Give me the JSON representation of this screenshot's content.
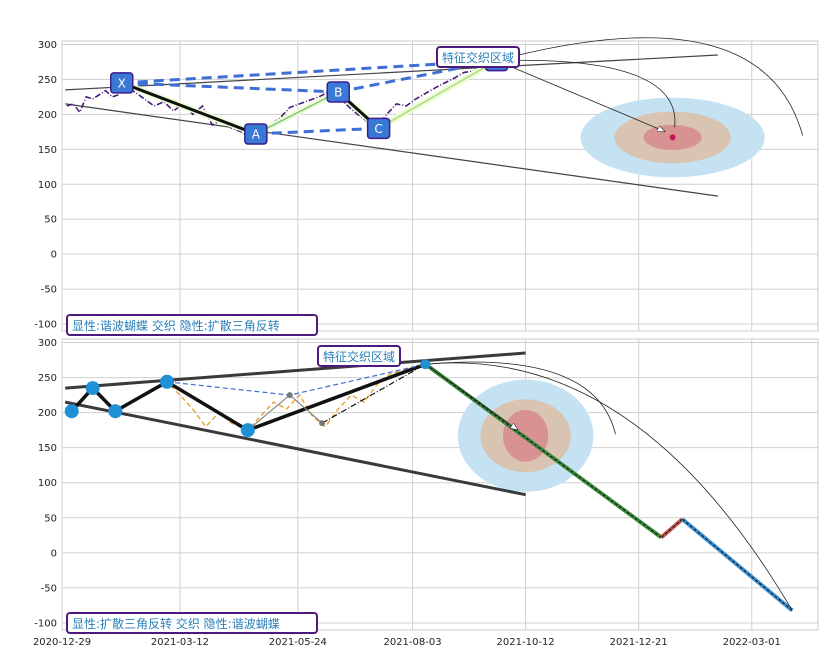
{
  "chart_data": [
    {
      "type": "line",
      "title": "",
      "xlabel": "",
      "ylabel": "",
      "ylim": [
        -110,
        305
      ],
      "xlim": [
        "2020-12-29",
        "2022-04-11"
      ],
      "grid": true,
      "y_ticks": [
        300,
        250,
        200,
        150,
        100,
        50,
        0,
        -50,
        -100
      ],
      "annotation_zone": "特征交织区域",
      "annotation_bottom": "显性:谐波蝴蝶 交织 隐性:扩散三角反转",
      "pattern_points": [
        {
          "label": "X",
          "date": "2021-02-04",
          "value": 245
        },
        {
          "label": "A",
          "date": "2021-04-28",
          "value": 172
        },
        {
          "label": "B",
          "date": "2021-06-18",
          "value": 232
        },
        {
          "label": "C",
          "date": "2021-07-13",
          "value": 180
        },
        {
          "label": "D",
          "date": "2021-09-24",
          "value": 277
        }
      ],
      "price_series": [
        [
          "2021-01-01",
          212
        ],
        [
          "2021-01-05",
          215
        ],
        [
          "2021-01-09",
          203
        ],
        [
          "2021-01-13",
          225
        ],
        [
          "2021-01-17",
          222
        ],
        [
          "2021-01-21",
          228
        ],
        [
          "2021-01-25",
          234
        ],
        [
          "2021-01-29",
          225
        ],
        [
          "2021-02-02",
          228
        ],
        [
          "2021-02-06",
          240
        ],
        [
          "2021-02-12",
          232
        ],
        [
          "2021-02-18",
          222
        ],
        [
          "2021-02-24",
          212
        ],
        [
          "2021-03-02",
          218
        ],
        [
          "2021-03-08",
          205
        ],
        [
          "2021-03-14",
          215
        ],
        [
          "2021-03-20",
          200
        ],
        [
          "2021-03-26",
          212
        ],
        [
          "2021-04-01",
          185
        ],
        [
          "2021-04-07",
          192
        ],
        [
          "2021-04-13",
          180
        ],
        [
          "2021-04-19",
          175
        ],
        [
          "2021-04-25",
          165
        ],
        [
          "2021-05-01",
          180
        ],
        [
          "2021-05-07",
          185
        ],
        [
          "2021-05-13",
          195
        ],
        [
          "2021-05-19",
          210
        ],
        [
          "2021-05-25",
          215
        ],
        [
          "2021-05-31",
          220
        ],
        [
          "2021-06-06",
          225
        ],
        [
          "2021-06-12",
          232
        ],
        [
          "2021-06-18",
          226
        ],
        [
          "2021-06-24",
          212
        ],
        [
          "2021-06-30",
          200
        ],
        [
          "2021-07-06",
          190
        ],
        [
          "2021-07-12",
          182
        ],
        [
          "2021-07-18",
          200
        ],
        [
          "2021-07-24",
          215
        ],
        [
          "2021-07-30",
          212
        ],
        [
          "2021-08-05",
          222
        ],
        [
          "2021-08-11",
          230
        ],
        [
          "2021-08-17",
          238
        ],
        [
          "2021-08-23",
          245
        ],
        [
          "2021-08-29",
          252
        ],
        [
          "2021-09-04",
          260
        ],
        [
          "2021-09-10",
          262
        ],
        [
          "2021-09-16",
          270
        ],
        [
          "2021-09-22",
          278
        ],
        [
          "2021-09-28",
          268
        ]
      ],
      "trend_upper": [
        [
          "2020-12-31",
          235
        ],
        [
          "2022-02-08",
          285
        ]
      ],
      "trend_lower": [
        [
          "2020-12-31",
          215
        ],
        [
          "2022-02-08",
          83
        ]
      ],
      "target_center": {
        "date": "2022-01-11",
        "value": 167
      },
      "target_rings_days": [
        57,
        36,
        18
      ],
      "target_rings_value": [
        57,
        37,
        18
      ],
      "colors": {
        "pattern_solid": "#111111",
        "pattern_dash": "#3d6fd4",
        "price": "#4b1a7a",
        "label_fill": "#3a78d6",
        "label_edge": "#3b1d8f",
        "ring_outer": "#c5e2f3",
        "ring_mid": "#d9c4b2",
        "ring_inner": "#d99292",
        "trend": "#444444"
      }
    },
    {
      "type": "line",
      "title": "",
      "xlabel": "",
      "ylabel": "",
      "ylim": [
        -110,
        305
      ],
      "xlim": [
        "2020-12-29",
        "2022-04-11"
      ],
      "grid": true,
      "y_ticks": [
        300,
        250,
        200,
        150,
        100,
        50,
        0,
        -50,
        -100
      ],
      "x_tick_labels": [
        "2020-12-29",
        "2021-03-12",
        "2021-05-24",
        "2021-08-03",
        "2021-10-12",
        "2021-12-21",
        "2022-03-01"
      ],
      "annotation_zone": "特征交织区域",
      "annotation_bottom": "显性:扩散三角反转 交织 隐性:谐波蝴蝶",
      "triangle_points": [
        {
          "date": "2021-01-04",
          "value": 202
        },
        {
          "date": "2021-01-17",
          "value": 235
        },
        {
          "date": "2021-01-31",
          "value": 202
        },
        {
          "date": "2021-03-04",
          "value": 244
        },
        {
          "date": "2021-04-23",
          "value": 175
        }
      ],
      "pattern_dashed": [
        [
          "2021-03-04",
          244
        ],
        [
          "2021-05-19",
          225
        ],
        [
          "2021-06-08",
          185
        ],
        [
          "2021-08-11",
          269
        ]
      ],
      "price_series": [
        [
          "2021-01-04",
          202
        ],
        [
          "2021-01-17",
          235
        ],
        [
          "2021-01-31",
          202
        ],
        [
          "2021-03-04",
          244
        ],
        [
          "2021-03-12",
          225
        ],
        [
          "2021-03-20",
          205
        ],
        [
          "2021-03-28",
          180
        ],
        [
          "2021-04-05",
          200
        ],
        [
          "2021-04-13",
          185
        ],
        [
          "2021-04-23",
          175
        ],
        [
          "2021-05-01",
          195
        ],
        [
          "2021-05-09",
          215
        ],
        [
          "2021-05-17",
          205
        ],
        [
          "2021-05-25",
          225
        ],
        [
          "2021-06-02",
          195
        ],
        [
          "2021-06-10",
          180
        ],
        [
          "2021-06-18",
          205
        ],
        [
          "2021-06-26",
          225
        ],
        [
          "2021-07-04",
          215
        ],
        [
          "2021-07-12",
          240
        ],
        [
          "2021-07-20",
          255
        ],
        [
          "2021-07-28",
          260
        ],
        [
          "2021-08-05",
          266
        ],
        [
          "2021-08-11",
          269
        ]
      ],
      "projection": [
        [
          "2021-08-11",
          269
        ],
        [
          "2022-01-04",
          22
        ],
        [
          "2022-01-17",
          48
        ],
        [
          "2022-03-26",
          -82
        ]
      ],
      "trend_upper": [
        [
          "2020-12-31",
          235
        ],
        [
          "2021-10-12",
          285
        ]
      ],
      "trend_lower": [
        [
          "2020-12-31",
          215
        ],
        [
          "2021-10-12",
          83
        ]
      ],
      "target_center": {
        "date": "2021-10-12",
        "value": 167
      },
      "target_rings_days": [
        42,
        28,
        14
      ],
      "target_rings_value": [
        80,
        52,
        37
      ],
      "colors": {
        "pattern_solid": "#111111",
        "pattern_dash": "#3d6fd4",
        "price": "#e8a93b",
        "marker": "#1f8fd6",
        "proj_green": "#3a8a3a",
        "proj_red": "#c0504d",
        "proj_blue": "#3b8fd1",
        "ring_outer": "#c5e2f3",
        "ring_mid": "#d9c4b2",
        "ring_inner": "#d99292",
        "trend": "#3a3a3a"
      }
    }
  ]
}
